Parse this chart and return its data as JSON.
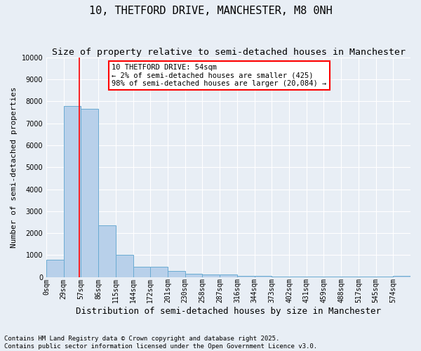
{
  "title": "10, THETFORD DRIVE, MANCHESTER, M8 0NH",
  "subtitle": "Size of property relative to semi-detached houses in Manchester",
  "xlabel": "Distribution of semi-detached houses by size in Manchester",
  "ylabel": "Number of semi-detached properties",
  "bar_labels": [
    "0sqm",
    "29sqm",
    "57sqm",
    "86sqm",
    "115sqm",
    "144sqm",
    "172sqm",
    "201sqm",
    "230sqm",
    "258sqm",
    "287sqm",
    "316sqm",
    "344sqm",
    "373sqm",
    "402sqm",
    "431sqm",
    "459sqm",
    "488sqm",
    "517sqm",
    "545sqm",
    "574sqm"
  ],
  "bar_values": [
    800,
    7800,
    7650,
    2350,
    1020,
    460,
    460,
    290,
    160,
    130,
    130,
    60,
    50,
    40,
    30,
    20,
    10,
    10,
    10,
    10,
    50
  ],
  "bar_color": "#b8d0ea",
  "bar_edge_color": "#6aabd2",
  "bg_color": "#e8eef5",
  "grid_color": "#ffffff",
  "annotation_text_line1": "10 THETFORD DRIVE: 54sqm",
  "annotation_text_line2": "← 2% of semi-detached houses are smaller (425)",
  "annotation_text_line3": "98% of semi-detached houses are larger (20,084) →",
  "footer_line1": "Contains HM Land Registry data © Crown copyright and database right 2025.",
  "footer_line2": "Contains public sector information licensed under the Open Government Licence v3.0.",
  "ylim": [
    0,
    10000
  ],
  "yticks": [
    0,
    1000,
    2000,
    3000,
    4000,
    5000,
    6000,
    7000,
    8000,
    9000,
    10000
  ],
  "title_fontsize": 11,
  "subtitle_fontsize": 9.5,
  "xlabel_fontsize": 9,
  "ylabel_fontsize": 8,
  "tick_fontsize": 7,
  "footer_fontsize": 6.5,
  "annotation_fontsize": 7.5
}
